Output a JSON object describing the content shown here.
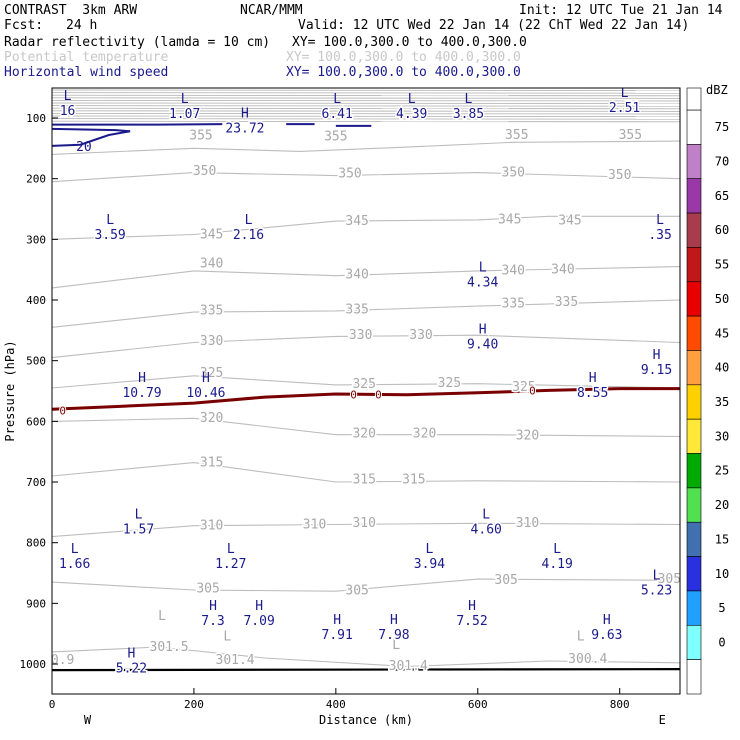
{
  "header": {
    "model": "CONTRAST  3km ARW",
    "org": "NCAR/MMM",
    "init": "Init: 12 UTC Tue 21 Jan 14",
    "fcst_label": "Fcst:",
    "fcst_value": "24 h",
    "valid": "Valid: 12 UTC Wed 22 Jan 14 (22 ChT Wed 22 Jan 14)",
    "field1": "Radar reflectivity (lamda = 10 cm)",
    "field1_xy": "XY= 100.0,300.0 to 400.0,300.0",
    "field2": "Potential temperature",
    "field2_xy": "XY= 100.0,300.0 to 400.0,300.0",
    "field3": "Horizontal wind speed",
    "field3_xy": "XY= 100.0,300.0 to 400.0,300.0"
  },
  "colors": {
    "wind": "#1a1a8c",
    "theta": "#bdbdbd",
    "refl_contour": "#7a0000"
  },
  "chart_data": {
    "type": "cross-section",
    "xlabel": "Distance (km)",
    "ylabel": "Pressure (hPa)",
    "xlim": [
      0,
      885
    ],
    "ylim": [
      1050,
      50
    ],
    "x_ticks": [
      0,
      200,
      400,
      600,
      800
    ],
    "y_ticks": [
      100,
      200,
      300,
      400,
      500,
      600,
      700,
      800,
      900,
      1000
    ],
    "x_end_labels": {
      "west": "W",
      "east": "E"
    },
    "colorbar": {
      "title": "dBZ",
      "levels": [
        "75",
        "70",
        "65",
        "60",
        "55",
        "50",
        "45",
        "40",
        "35",
        "30",
        "25",
        "20",
        "15",
        "10",
        "5",
        "0"
      ],
      "colors": [
        "#ffffff",
        "#c080c8",
        "#9a38a8",
        "#a83c4c",
        "#c01818",
        "#e80000",
        "#ff4a00",
        "#ff9f40",
        "#ffd000",
        "#ffe838",
        "#00aa00",
        "#50e050",
        "#4070b0",
        "#2830e0",
        "#20a0ff",
        "#80ffff",
        "#ffffff"
      ]
    },
    "theta_labels": [
      {
        "t": "355",
        "x": 210,
        "p": 127
      },
      {
        "t": "355",
        "x": 400,
        "p": 129
      },
      {
        "t": "355",
        "x": 655,
        "p": 126
      },
      {
        "t": "355",
        "x": 815,
        "p": 126
      },
      {
        "t": "350",
        "x": 215,
        "p": 186
      },
      {
        "t": "350",
        "x": 420,
        "p": 190
      },
      {
        "t": "350",
        "x": 650,
        "p": 188
      },
      {
        "t": "350",
        "x": 800,
        "p": 192
      },
      {
        "t": "345",
        "x": 225,
        "p": 290
      },
      {
        "t": "345",
        "x": 430,
        "p": 268
      },
      {
        "t": "345",
        "x": 645,
        "p": 266
      },
      {
        "t": "345",
        "x": 730,
        "p": 267
      },
      {
        "t": "340",
        "x": 225,
        "p": 338
      },
      {
        "t": "340",
        "x": 430,
        "p": 356
      },
      {
        "t": "340",
        "x": 650,
        "p": 350
      },
      {
        "t": "340",
        "x": 720,
        "p": 348
      },
      {
        "t": "335",
        "x": 225,
        "p": 416
      },
      {
        "t": "335",
        "x": 430,
        "p": 414
      },
      {
        "t": "335",
        "x": 650,
        "p": 404
      },
      {
        "t": "335",
        "x": 725,
        "p": 402
      },
      {
        "t": "330",
        "x": 225,
        "p": 466
      },
      {
        "t": "330",
        "x": 435,
        "p": 456
      },
      {
        "t": "330",
        "x": 520,
        "p": 456
      },
      {
        "t": "325",
        "x": 225,
        "p": 519
      },
      {
        "t": "325",
        "x": 440,
        "p": 537
      },
      {
        "t": "325",
        "x": 560,
        "p": 535
      },
      {
        "t": "325",
        "x": 665,
        "p": 542
      },
      {
        "t": "320",
        "x": 225,
        "p": 593
      },
      {
        "t": "320",
        "x": 440,
        "p": 618
      },
      {
        "t": "320",
        "x": 525,
        "p": 618
      },
      {
        "t": "320",
        "x": 670,
        "p": 622
      },
      {
        "t": "315",
        "x": 225,
        "p": 666
      },
      {
        "t": "315",
        "x": 440,
        "p": 694
      },
      {
        "t": "315",
        "x": 510,
        "p": 694
      },
      {
        "t": "310",
        "x": 225,
        "p": 770
      },
      {
        "t": "310",
        "x": 370,
        "p": 768
      },
      {
        "t": "310",
        "x": 440,
        "p": 766
      },
      {
        "t": "310",
        "x": 670,
        "p": 766
      },
      {
        "t": "305",
        "x": 220,
        "p": 874
      },
      {
        "t": "305",
        "x": 430,
        "p": 877
      },
      {
        "t": "305",
        "x": 640,
        "p": 860
      },
      {
        "t": "305",
        "x": 870,
        "p": 858
      },
      {
        "t": "301.5",
        "x": 165,
        "p": 970
      },
      {
        "t": "301.4",
        "x": 258,
        "p": 992
      },
      {
        "t": "301.4",
        "x": 502,
        "p": 1002
      },
      {
        "t": "300.4",
        "x": 755,
        "p": 990
      },
      {
        "t": "0.9",
        "x": 15,
        "p": 992
      }
    ],
    "theta_extrema": [
      {
        "k": "L",
        "x": 155,
        "p": 919
      },
      {
        "k": "L",
        "x": 247,
        "p": 953
      },
      {
        "k": "L",
        "x": 485,
        "p": 967
      },
      {
        "k": "L",
        "x": 745,
        "p": 953
      }
    ],
    "refl_labels": [
      {
        "t": "0",
        "x": 15,
        "p": 582
      },
      {
        "t": "0",
        "x": 425,
        "p": 556
      },
      {
        "t": "0",
        "x": 460,
        "p": 556
      },
      {
        "t": "0",
        "x": 677,
        "p": 549
      }
    ],
    "refl_contour": [
      [
        0,
        580
      ],
      [
        100,
        575
      ],
      [
        200,
        570
      ],
      [
        300,
        560
      ],
      [
        400,
        555
      ],
      [
        500,
        556
      ],
      [
        600,
        553
      ],
      [
        700,
        549
      ],
      [
        800,
        546
      ],
      [
        885,
        546
      ]
    ],
    "wind_extrema": [
      {
        "k": "L",
        "v": "16",
        "x": 5,
        "p": 75
      },
      {
        "k": "L",
        "v": "1.07",
        "x": 170,
        "p": 80
      },
      {
        "k": "L",
        "v": "6.41",
        "x": 385,
        "p": 80
      },
      {
        "k": "L",
        "v": "4.39",
        "x": 490,
        "p": 80
      },
      {
        "k": "L",
        "v": "3.85",
        "x": 570,
        "p": 80
      },
      {
        "k": "L",
        "v": "2.51",
        "x": 790,
        "p": 70
      },
      {
        "k": "H",
        "v": "23.72",
        "x": 255,
        "p": 104
      },
      {
        "k": "L",
        "v": "3.59",
        "x": 65,
        "p": 280
      },
      {
        "k": "L",
        "v": "2.16",
        "x": 260,
        "p": 280
      },
      {
        "k": "L",
        "v": ".35",
        "x": 840,
        "p": 280
      },
      {
        "k": "L",
        "v": "4.34",
        "x": 590,
        "p": 358
      },
      {
        "k": "H",
        "v": "9.40",
        "x": 590,
        "p": 460
      },
      {
        "k": "H",
        "v": "9.15",
        "x": 835,
        "p": 502
      },
      {
        "k": "H",
        "v": "10.79",
        "x": 110,
        "p": 540
      },
      {
        "k": "H",
        "v": "10.46",
        "x": 200,
        "p": 540
      },
      {
        "k": "H",
        "v": "8.55",
        "x": 745,
        "p": 540
      },
      {
        "k": "L",
        "v": "1.57",
        "x": 105,
        "p": 765
      },
      {
        "k": "L",
        "v": "1.27",
        "x": 235,
        "p": 822
      },
      {
        "k": "L",
        "v": "1.66",
        "x": 15,
        "p": 822
      },
      {
        "k": "L",
        "v": "4.60",
        "x": 595,
        "p": 765
      },
      {
        "k": "L",
        "v": "3.94",
        "x": 515,
        "p": 822
      },
      {
        "k": "L",
        "v": "4.19",
        "x": 695,
        "p": 822
      },
      {
        "k": "L",
        "v": "5.23",
        "x": 835,
        "p": 866
      },
      {
        "k": "H",
        "v": "7.3",
        "x": 210,
        "p": 916
      },
      {
        "k": "H",
        "v": "7.09",
        "x": 275,
        "p": 916
      },
      {
        "k": "H",
        "v": "7.91",
        "x": 385,
        "p": 939
      },
      {
        "k": "H",
        "v": "7.98",
        "x": 465,
        "p": 939
      },
      {
        "k": "H",
        "v": "7.52",
        "x": 575,
        "p": 916
      },
      {
        "k": "H",
        "v": "9.63",
        "x": 765,
        "p": 939
      },
      {
        "k": "H",
        "v": "5.22",
        "x": 95,
        "p": 994
      }
    ],
    "wind_contour_label": {
      "t": "20",
      "x": 45,
      "p": 146
    },
    "surface_line_p": 1010
  }
}
